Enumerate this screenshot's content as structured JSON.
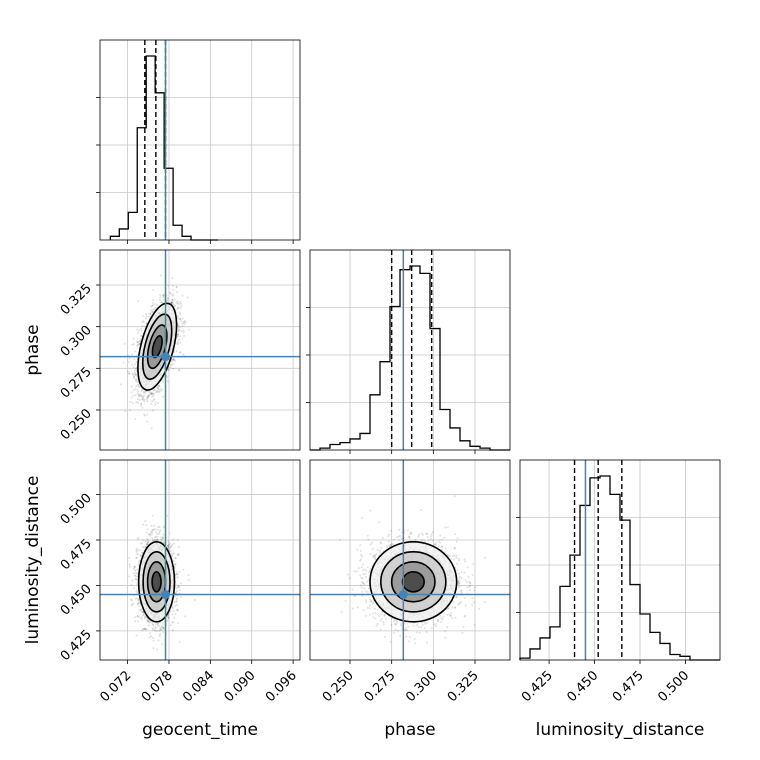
{
  "chart_data": {
    "type": "corner",
    "title": "",
    "parameters": [
      "geocent_time",
      "phase",
      "luminosity_distance"
    ],
    "colors": {
      "truth": "#4682b4",
      "hist": "#000000",
      "grid": "#c8c8c8",
      "scatter": "#000000"
    },
    "grid": true,
    "truths": {
      "geocent_time": 0.0775,
      "phase": 0.282,
      "luminosity_distance": 0.445
    },
    "ranges": {
      "geocent_time": [
        0.068,
        0.097
      ],
      "phase": [
        0.226,
        0.346
      ],
      "luminosity_distance": [
        0.409,
        0.519
      ]
    },
    "ticks": {
      "geocent_time": [
        "0.072",
        "0.078",
        "0.084",
        "0.090",
        "0.096"
      ],
      "phase": [
        "0.250",
        "0.275",
        "0.300",
        "0.325"
      ],
      "luminosity_distance": [
        "0.425",
        "0.450",
        "0.475",
        "0.500"
      ]
    },
    "quantiles": {
      "geocent_time": [
        0.0745,
        0.0761,
        0.0775
      ],
      "phase": [
        0.275,
        0.287,
        0.299
      ],
      "luminosity_distance": [
        0.439,
        0.452,
        0.465
      ]
    },
    "histograms": {
      "geocent_time": {
        "edges": [
          0.0695,
          0.0708,
          0.0721,
          0.0734,
          0.0747,
          0.076,
          0.0773,
          0.0786,
          0.0799,
          0.0812,
          0.0825,
          0.0838,
          0.0851
        ],
        "counts": [
          2,
          6,
          15,
          61,
          100,
          80,
          39,
          8,
          2,
          0,
          0,
          0
        ]
      },
      "phase": {
        "edges": [
          0.226,
          0.232,
          0.238,
          0.244,
          0.25,
          0.256,
          0.262,
          0.268,
          0.274,
          0.28,
          0.286,
          0.292,
          0.298,
          0.304,
          0.31,
          0.316,
          0.322,
          0.328,
          0.334,
          0.34,
          0.346
        ],
        "counts": [
          0,
          1,
          3,
          4,
          6,
          9,
          30,
          48,
          78,
          98,
          100,
          96,
          66,
          22,
          12,
          5,
          2,
          1,
          0,
          0
        ]
      },
      "luminosity_distance": {
        "edges": [
          0.409,
          0.4145,
          0.42,
          0.4255,
          0.431,
          0.4365,
          0.442,
          0.4475,
          0.453,
          0.4585,
          0.464,
          0.4695,
          0.475,
          0.4805,
          0.486,
          0.4915,
          0.497,
          0.5025,
          0.508,
          0.5135,
          0.519
        ],
        "counts": [
          1,
          6,
          12,
          18,
          40,
          57,
          84,
          99,
          100,
          90,
          76,
          41,
          25,
          15,
          9,
          3,
          2,
          0,
          0,
          0
        ]
      }
    },
    "posteriors": {
      "phase_vs_geocent_time": {
        "mean": [
          0.0763,
          0.288
        ],
        "sd": [
          0.0014,
          0.013
        ],
        "rho": 0.5
      },
      "luminosity_distance_vs_geocent_time": {
        "mean": [
          0.0762,
          0.452
        ],
        "sd": [
          0.0013,
          0.011
        ],
        "rho": 0.0
      },
      "luminosity_distance_vs_phase": {
        "mean": [
          0.288,
          0.452
        ],
        "sd": [
          0.013,
          0.011
        ],
        "rho": 0.0
      }
    }
  }
}
